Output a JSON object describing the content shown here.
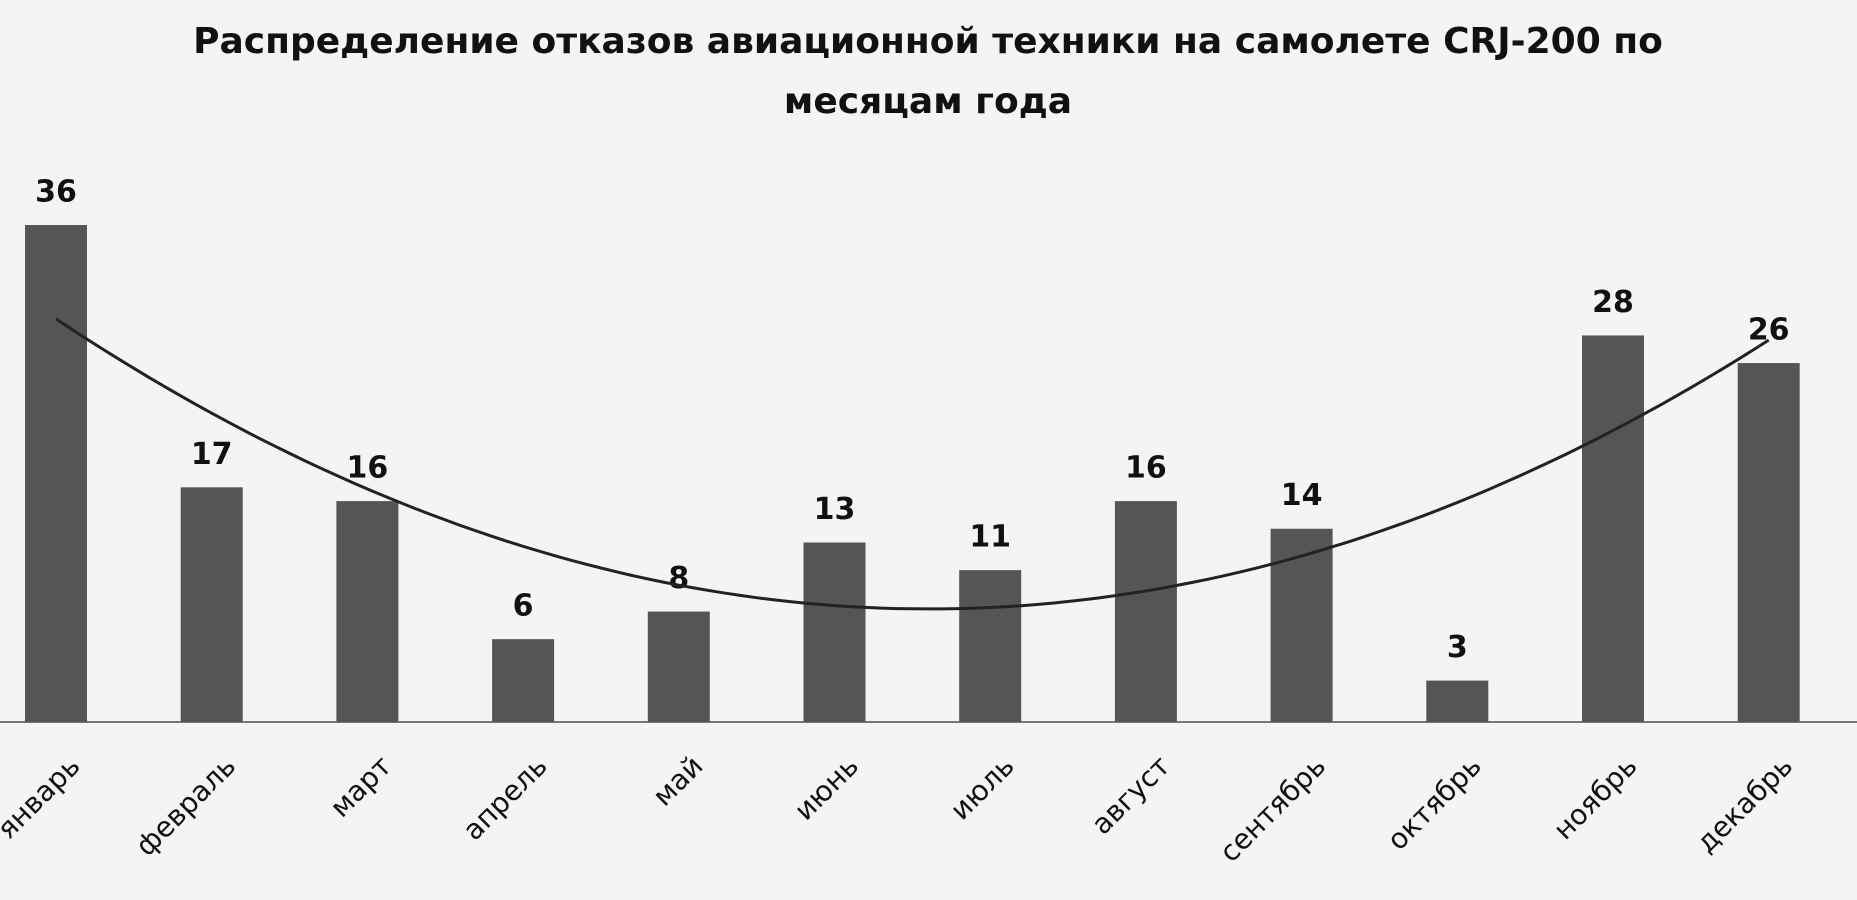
{
  "chart_data": {
    "type": "bar",
    "title": "Распределение отказов авиационной техники на самолете CRJ-200 по месяцам года",
    "categories": [
      "январь",
      "февраль",
      "март",
      "апрель",
      "май",
      "июнь",
      "июль",
      "август",
      "сентябрь",
      "октябрь",
      "ноябрь",
      "декабрь"
    ],
    "values": [
      36,
      17,
      16,
      6,
      8,
      13,
      11,
      16,
      14,
      3,
      28,
      26
    ],
    "color": "#555555",
    "trendline": "polynomial"
  }
}
